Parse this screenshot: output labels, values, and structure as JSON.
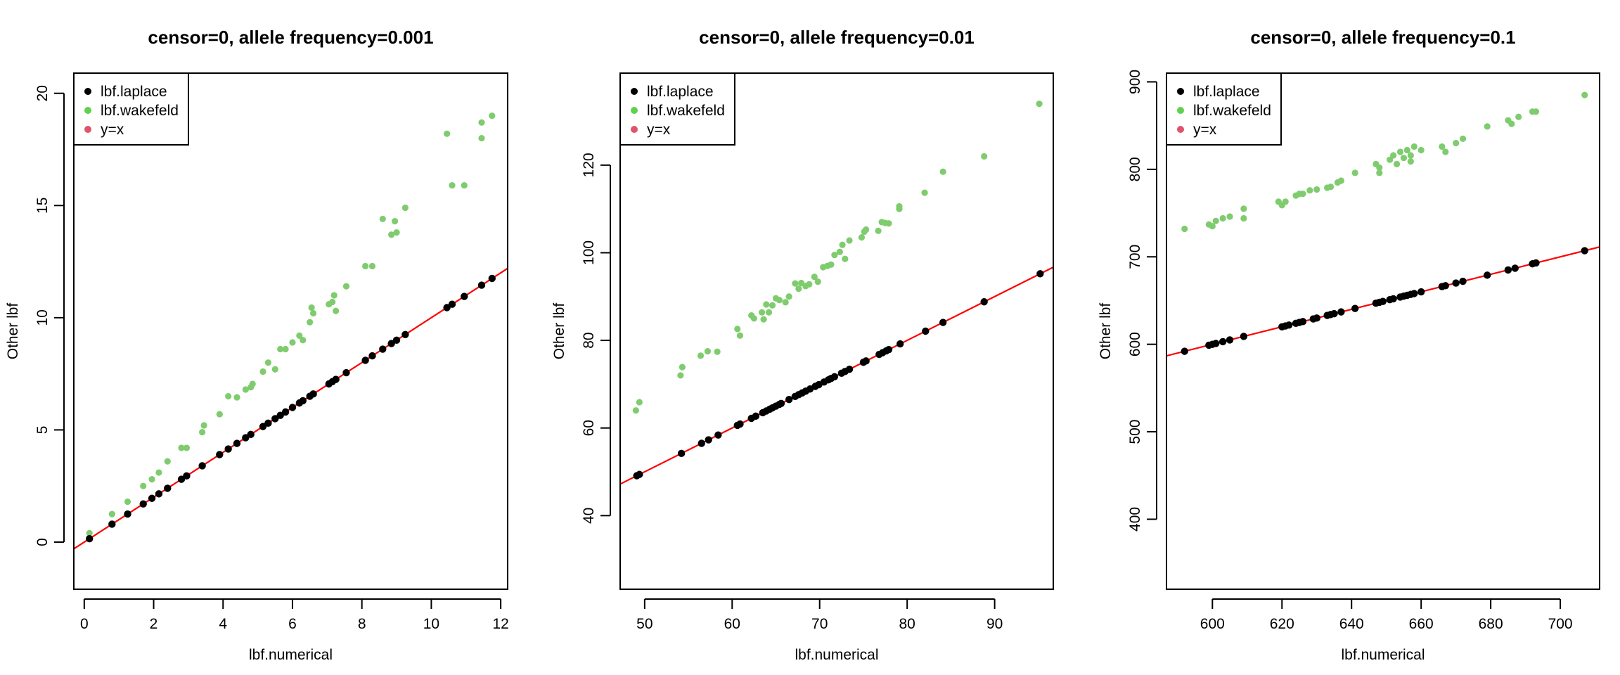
{
  "chart_data": [
    {
      "type": "scatter",
      "title": "censor=0, allele frequency=0.001",
      "xlabel": "lbf.numerical",
      "ylabel": "Other lbf",
      "xlim": [
        -0.3,
        12.2
      ],
      "ylim": [
        -2.1,
        20.9
      ],
      "xticks": [
        0,
        2,
        4,
        6,
        8,
        10,
        12
      ],
      "yticks": [
        0,
        5,
        10,
        15,
        20
      ],
      "legend_position": "top-left",
      "legend": [
        {
          "label": "lbf.laplace",
          "color": "#000000"
        },
        {
          "label": "lbf.wakefeld",
          "color": "#61D04F"
        },
        {
          "label": "y=x",
          "color": "#DF536B"
        }
      ],
      "reference_line": {
        "label": "y=x",
        "slope": 1,
        "intercept": 0,
        "color": "#FF0000"
      },
      "series": [
        {
          "name": "lbf.laplace",
          "color": "#000000",
          "x": [
            0.15,
            0.8,
            1.25,
            1.7,
            1.95,
            2.15,
            2.4,
            2.8,
            2.95,
            3.4,
            3.9,
            4.15,
            4.4,
            4.65,
            4.8,
            5.15,
            5.3,
            5.5,
            5.65,
            5.8,
            6.0,
            6.2,
            6.3,
            6.5,
            6.6,
            7.05,
            7.15,
            7.25,
            7.55,
            8.1,
            8.3,
            8.6,
            8.85,
            9.0,
            9.25,
            10.45,
            10.6,
            10.95,
            11.45,
            11.75
          ],
          "y": [
            0.15,
            0.8,
            1.25,
            1.7,
            1.95,
            2.15,
            2.4,
            2.8,
            2.95,
            3.4,
            3.9,
            4.15,
            4.4,
            4.65,
            4.8,
            5.15,
            5.3,
            5.5,
            5.65,
            5.8,
            6.0,
            6.2,
            6.3,
            6.5,
            6.6,
            7.05,
            7.15,
            7.25,
            7.55,
            8.1,
            8.3,
            8.6,
            8.85,
            9.0,
            9.25,
            10.45,
            10.6,
            10.95,
            11.45,
            11.75
          ]
        },
        {
          "name": "lbf.wakefeld",
          "color": "#7FCC6F",
          "x": [
            0.15,
            0.8,
            1.25,
            1.7,
            1.95,
            2.15,
            2.4,
            2.8,
            2.95,
            3.4,
            3.45,
            3.9,
            4.15,
            4.4,
            4.65,
            4.8,
            4.85,
            5.15,
            5.3,
            5.5,
            5.65,
            5.8,
            6.0,
            6.2,
            6.3,
            6.5,
            6.6,
            6.55,
            7.05,
            7.15,
            7.25,
            7.2,
            7.55,
            8.1,
            8.3,
            8.6,
            8.85,
            8.95,
            9.0,
            9.25,
            10.45,
            10.6,
            10.95,
            11.45,
            11.45,
            11.75
          ],
          "y": [
            0.4,
            1.25,
            1.8,
            2.5,
            2.8,
            3.1,
            3.6,
            4.2,
            4.2,
            4.9,
            5.2,
            5.7,
            6.5,
            6.45,
            6.8,
            6.9,
            7.05,
            7.6,
            8.0,
            7.7,
            8.6,
            8.6,
            8.9,
            9.2,
            9.0,
            9.8,
            10.2,
            10.45,
            10.6,
            10.7,
            10.3,
            11.0,
            11.4,
            12.3,
            12.3,
            14.4,
            13.7,
            14.3,
            13.8,
            14.9,
            18.2,
            15.9,
            15.9,
            18.0,
            18.7,
            19.0
          ]
        }
      ]
    },
    {
      "type": "scatter",
      "title": "censor=0, allele frequency=0.01",
      "xlabel": "lbf.numerical",
      "ylabel": "Other lbf",
      "xlim": [
        47.2,
        96.7
      ],
      "ylim": [
        23.2,
        141.0
      ],
      "xticks": [
        50,
        60,
        70,
        80,
        90
      ],
      "yticks": [
        40,
        60,
        80,
        100,
        120
      ],
      "legend_position": "top-left",
      "legend": [
        {
          "label": "lbf.laplace",
          "color": "#000000"
        },
        {
          "label": "lbf.wakefeld",
          "color": "#61D04F"
        },
        {
          "label": "y=x",
          "color": "#DF536B"
        }
      ],
      "reference_line": {
        "label": "y=x",
        "slope": 1,
        "intercept": 0,
        "color": "#FF0000"
      },
      "series": [
        {
          "name": "lbf.laplace",
          "color": "#000000",
          "x": [
            49.1,
            49.4,
            54.2,
            56.5,
            57.3,
            58.4,
            60.6,
            60.9,
            62.2,
            62.7,
            63.5,
            63.9,
            64.3,
            64.6,
            65.0,
            65.4,
            65.6,
            66.5,
            67.2,
            67.6,
            68.0,
            68.4,
            68.9,
            69.5,
            69.9,
            70.5,
            71.0,
            71.3,
            71.7,
            72.5,
            72.9,
            73.4,
            75.0,
            75.3,
            76.8,
            77.2,
            77.6,
            77.9,
            79.2,
            82.1,
            84.1,
            88.8,
            95.2
          ],
          "y": [
            49.1,
            49.4,
            54.2,
            56.5,
            57.3,
            58.4,
            60.6,
            60.9,
            62.2,
            62.7,
            63.5,
            63.9,
            64.3,
            64.6,
            65.0,
            65.4,
            65.6,
            66.5,
            67.2,
            67.6,
            68.0,
            68.4,
            68.9,
            69.5,
            69.9,
            70.5,
            71.0,
            71.3,
            71.7,
            72.5,
            72.9,
            73.4,
            75.0,
            75.3,
            76.8,
            77.2,
            77.6,
            77.9,
            79.2,
            82.1,
            84.1,
            88.8,
            95.2
          ]
        },
        {
          "name": "lbf.wakefeld",
          "color": "#7FCC6F",
          "x": [
            49.0,
            49.4,
            54.1,
            54.3,
            56.4,
            57.2,
            58.3,
            60.6,
            60.9,
            62.2,
            62.5,
            63.4,
            63.6,
            63.9,
            64.2,
            64.6,
            65.0,
            65.4,
            66.1,
            66.5,
            67.2,
            67.6,
            67.9,
            68.4,
            68.8,
            69.4,
            69.8,
            70.4,
            70.9,
            71.3,
            71.7,
            72.3,
            72.6,
            72.9,
            73.4,
            74.8,
            75.1,
            75.3,
            76.7,
            77.1,
            77.5,
            77.9,
            79.1,
            79.1,
            82.0,
            84.1,
            88.8,
            95.1
          ],
          "y": [
            64.0,
            65.9,
            72.0,
            73.9,
            76.5,
            77.5,
            77.4,
            82.6,
            81.1,
            85.7,
            85.0,
            86.4,
            84.8,
            88.2,
            86.4,
            88.0,
            89.6,
            89.2,
            88.7,
            90.0,
            93.0,
            91.8,
            93.1,
            92.4,
            92.8,
            94.5,
            93.4,
            96.7,
            97.0,
            97.3,
            99.5,
            100.2,
            101.8,
            98.6,
            102.8,
            103.5,
            104.8,
            105.3,
            105.0,
            107.0,
            106.8,
            106.7,
            110.0,
            110.6,
            113.7,
            118.5,
            122.0,
            134.0
          ]
        }
      ]
    },
    {
      "type": "scatter",
      "title": "censor=0, allele frequency=0.1",
      "xlabel": "lbf.numerical",
      "ylabel": "Other lbf",
      "xlim": [
        586.8,
        711.3
      ],
      "ylim": [
        320.0,
        910.0
      ],
      "xticks": [
        600,
        620,
        640,
        660,
        680,
        700
      ],
      "yticks": [
        400,
        500,
        600,
        700,
        800,
        900
      ],
      "legend_position": "top-left",
      "legend": [
        {
          "label": "lbf.laplace",
          "color": "#000000"
        },
        {
          "label": "lbf.wakefeld",
          "color": "#61D04F"
        },
        {
          "label": "y=x",
          "color": "#DF536B"
        }
      ],
      "reference_line": {
        "label": "y=x",
        "slope": 1,
        "intercept": 0,
        "color": "#FF0000"
      },
      "series": [
        {
          "name": "lbf.laplace",
          "color": "#000000",
          "x": [
            592,
            599,
            600,
            601,
            603,
            605,
            609,
            620,
            621,
            622,
            624,
            625,
            626,
            629,
            630,
            633,
            634,
            635,
            637,
            641,
            647,
            648,
            649,
            651,
            652,
            654,
            655,
            656,
            657,
            658,
            660,
            666,
            667,
            670,
            672,
            679,
            685,
            687,
            692,
            693,
            707
          ],
          "y": [
            592,
            599,
            600,
            601,
            603,
            605,
            609,
            620,
            621,
            622,
            624,
            625,
            626,
            629,
            630,
            633,
            634,
            635,
            637,
            641,
            647,
            648,
            649,
            651,
            652,
            654,
            655,
            656,
            657,
            658,
            660,
            666,
            667,
            670,
            672,
            679,
            685,
            687,
            692,
            693,
            707
          ]
        },
        {
          "name": "lbf.wakefeld",
          "color": "#7FCC6F",
          "x": [
            592,
            599,
            600,
            601,
            603,
            605,
            609,
            609,
            619,
            620,
            621,
            624,
            625,
            626,
            628,
            630,
            633,
            634,
            636,
            637,
            641,
            647,
            648,
            648,
            651,
            652,
            653,
            654,
            655,
            656,
            657,
            657,
            658,
            660,
            666,
            667,
            670,
            672,
            679,
            685,
            686,
            688,
            692,
            693,
            707
          ],
          "y": [
            732,
            737,
            735,
            741,
            744,
            746,
            744,
            755,
            763,
            759,
            763,
            770,
            772,
            772,
            776,
            777,
            779,
            780,
            785,
            787,
            796,
            806,
            802,
            796,
            811,
            816,
            806,
            820,
            813,
            822,
            816,
            809,
            826,
            822,
            826,
            820,
            830,
            835,
            849,
            856,
            852,
            860,
            866,
            866,
            885
          ]
        }
      ]
    }
  ]
}
